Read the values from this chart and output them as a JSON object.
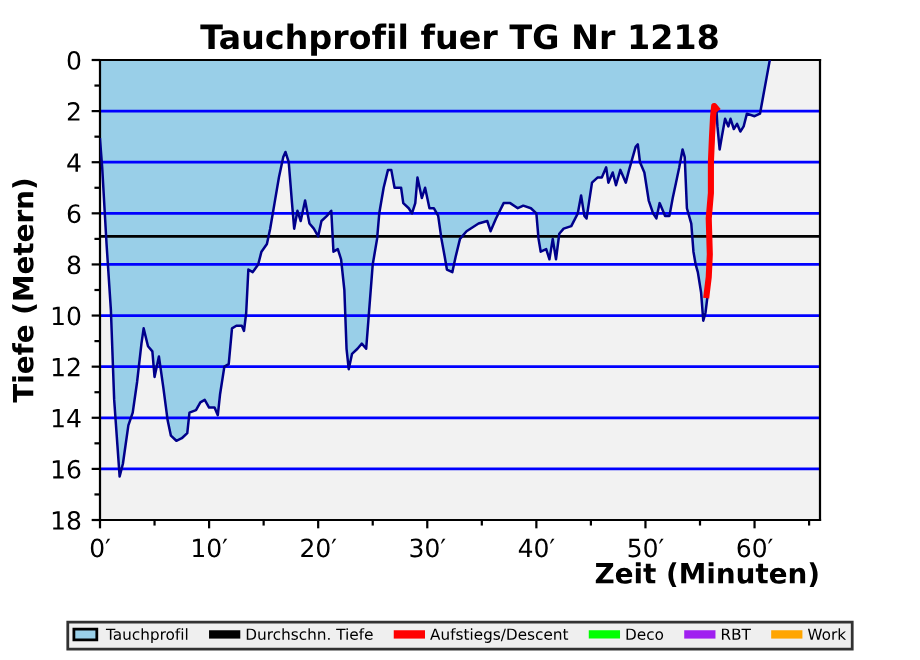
{
  "chart_data": {
    "type": "area",
    "title": "Tauchprofil fuer TG Nr 1218",
    "xlabel": "Zeit (Minuten)",
    "ylabel": "Tiefe (Metern)",
    "xlim": [
      0,
      66
    ],
    "ylim": [
      18,
      0
    ],
    "xticks": [
      {
        "value": 0,
        "label": "0′"
      },
      {
        "value": 5,
        "label": null
      },
      {
        "value": 10,
        "label": "10′"
      },
      {
        "value": 15,
        "label": null
      },
      {
        "value": 20,
        "label": "20′"
      },
      {
        "value": 25,
        "label": null
      },
      {
        "value": 30,
        "label": "30′"
      },
      {
        "value": 35,
        "label": null
      },
      {
        "value": 40,
        "label": "40′"
      },
      {
        "value": 45,
        "label": null
      },
      {
        "value": 50,
        "label": "50′"
      },
      {
        "value": 55,
        "label": null
      },
      {
        "value": 60,
        "label": "60′"
      },
      {
        "value": 65,
        "label": null
      }
    ],
    "yticks": [
      0,
      {
        "value": 1,
        "label": null
      },
      2,
      {
        "value": 3,
        "label": null
      },
      4,
      {
        "value": 5,
        "label": null
      },
      6,
      {
        "value": 7,
        "label": null
      },
      8,
      {
        "value": 9,
        "label": null
      },
      10,
      {
        "value": 11,
        "label": null
      },
      12,
      {
        "value": 13,
        "label": null
      },
      14,
      {
        "value": 15,
        "label": null
      },
      16,
      {
        "value": 17,
        "label": null
      },
      18
    ],
    "grid": "y",
    "legend": "bottom",
    "ref_lines": [
      {
        "axis": "y",
        "value": 6.9,
        "label": "Durchschn. Tiefe",
        "color": "#000000"
      }
    ],
    "series": [
      {
        "name": "Tauchprofil",
        "color": "#99cfe8",
        "x": [
          0,
          0.2,
          0.6,
          1.0,
          1.3,
          1.6,
          1.8,
          2.1,
          2.6,
          3.0,
          3.4,
          3.8,
          4.0,
          4.4,
          4.8,
          5.0,
          5.4,
          5.8,
          6.2,
          6.5,
          7.0,
          7.5,
          8.0,
          8.2,
          8.8,
          9.2,
          9.6,
          10.0,
          10.5,
          10.8,
          11.0,
          11.4,
          11.8,
          12.1,
          12.5,
          13.0,
          13.2,
          13.4,
          13.6,
          14.0,
          14.5,
          14.8,
          15.3,
          15.6,
          16.0,
          16.4,
          16.8,
          17.0,
          17.3,
          17.6,
          17.8,
          18.1,
          18.4,
          18.8,
          19.2,
          19.6,
          20.0,
          20.3,
          20.8,
          21.2,
          21.4,
          21.8,
          22.1,
          22.4,
          22.6,
          22.8,
          23.1,
          23.6,
          24.0,
          24.4,
          24.6,
          25.0,
          25.4,
          25.6,
          26.0,
          26.4,
          26.7,
          27.0,
          27.6,
          27.8,
          28.3,
          28.6,
          28.9,
          29.1,
          29.5,
          29.8,
          30.2,
          30.6,
          31.0,
          31.3,
          31.6,
          31.8,
          32.3,
          32.6,
          33.0,
          33.6,
          34.7,
          35.5,
          35.8,
          36.3,
          37.0,
          37.6,
          38.3,
          38.8,
          39.5,
          40.0,
          40.2,
          40.4,
          40.9,
          41.2,
          41.5,
          41.8,
          42.1,
          42.5,
          43.2,
          43.8,
          44.1,
          44.4,
          44.6,
          45.1,
          45.6,
          46.0,
          46.4,
          46.6,
          47.0,
          47.3,
          47.7,
          48.2,
          48.5,
          49.1,
          49.3,
          49.5,
          49.9,
          50.3,
          50.7,
          51.0,
          51.3,
          51.8,
          52.2,
          52.5,
          52.8,
          53.1,
          53.4,
          53.6,
          53.8,
          54.2,
          54.4,
          54.6,
          54.8,
          55.1,
          55.3,
          55.5,
          55.7,
          55.8,
          55.9,
          56.0,
          56.1,
          56.3,
          56.5,
          56.6,
          56.8,
          57.0,
          57.3,
          57.6,
          57.8,
          58.1,
          58.4,
          58.7,
          59.0,
          59.3,
          60.0,
          60.5,
          60.8,
          61.1,
          61.4
        ],
        "values": [
          3.1,
          4.2,
          7.2,
          9.8,
          13.3,
          15.1,
          16.3,
          15.8,
          14.3,
          13.8,
          12.6,
          11.1,
          10.5,
          11.2,
          11.4,
          12.4,
          11.6,
          12.8,
          14.1,
          14.7,
          14.9,
          14.8,
          14.6,
          13.8,
          13.7,
          13.4,
          13.3,
          13.6,
          13.6,
          13.9,
          13.1,
          12.0,
          11.9,
          10.5,
          10.4,
          10.4,
          10.6,
          9.9,
          8.2,
          8.3,
          8.0,
          7.5,
          7.2,
          6.6,
          5.6,
          4.6,
          3.8,
          3.6,
          4.0,
          5.6,
          6.6,
          5.9,
          6.3,
          5.5,
          6.4,
          6.6,
          6.9,
          6.3,
          6.1,
          5.9,
          7.5,
          7.4,
          7.8,
          9.0,
          11.3,
          12.1,
          11.5,
          11.3,
          11.1,
          11.3,
          10.2,
          8.0,
          7.0,
          6.0,
          5.0,
          4.3,
          4.3,
          5.0,
          5.0,
          5.6,
          5.8,
          6.0,
          5.6,
          4.6,
          5.4,
          5.0,
          5.8,
          5.8,
          6.1,
          7.0,
          7.7,
          8.2,
          8.3,
          7.7,
          7.0,
          6.7,
          6.4,
          6.3,
          6.7,
          6.2,
          5.6,
          5.6,
          5.8,
          5.7,
          5.8,
          6.0,
          7.0,
          7.5,
          7.4,
          7.8,
          7.0,
          7.8,
          6.8,
          6.6,
          6.5,
          6.0,
          5.3,
          6.1,
          6.2,
          4.8,
          4.6,
          4.6,
          4.2,
          4.8,
          4.4,
          4.9,
          4.3,
          4.8,
          4.3,
          3.4,
          3.3,
          4.0,
          4.4,
          5.5,
          6.0,
          6.2,
          5.6,
          6.1,
          6.1,
          5.4,
          4.8,
          4.2,
          3.5,
          3.8,
          5.8,
          6.4,
          7.5,
          8.0,
          8.3,
          9.1,
          10.2,
          9.9,
          9.2,
          7.6,
          6.2,
          5.2,
          4.0,
          2.2,
          1.9,
          2.6,
          3.5,
          3.0,
          2.3,
          2.6,
          2.3,
          2.7,
          2.5,
          2.8,
          2.6,
          2.1,
          2.2,
          2.1,
          1.4,
          0.7,
          0.0
        ]
      },
      {
        "name": "Aufstiegs/Descent",
        "type": "line",
        "color": "#ff0000",
        "x": [
          55.6,
          55.8,
          55.9,
          55.8,
          56.0,
          56.0,
          56.1,
          56.2,
          56.3,
          56.5
        ],
        "values": [
          9.2,
          8.5,
          7.6,
          6.2,
          5.2,
          4.0,
          3.0,
          2.2,
          1.8,
          1.9
        ]
      },
      {
        "name": "Deco",
        "type": "line",
        "color": "#00ff00"
      },
      {
        "name": "RBT",
        "type": "line",
        "color": "#a020f0"
      },
      {
        "name": "Work",
        "type": "line",
        "color": "#ffa500"
      }
    ]
  }
}
